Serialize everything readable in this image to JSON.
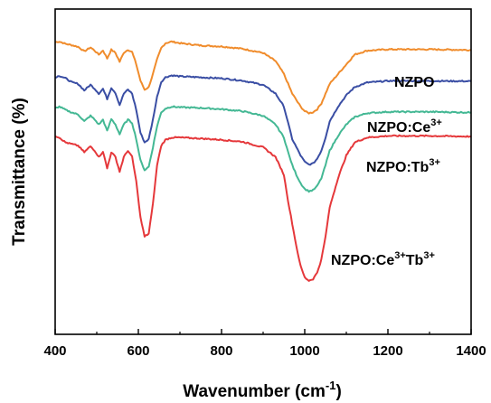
{
  "chart_data": {
    "type": "line",
    "title": "",
    "xlabel": "Wavenumber (cm",
    "xlabel_sup": "-1",
    "xlabel_end": ")",
    "ylabel": "Transmittance (%)",
    "xlim": [
      400,
      1400
    ],
    "ylim": [
      0,
      1
    ],
    "xticks": [
      400,
      600,
      800,
      1000,
      1200,
      1400
    ],
    "yticks_shown": false,
    "grid": false,
    "legend": "inline-labels-right",
    "series": [
      {
        "name": "NZPO",
        "label_base": "NZPO",
        "label_sup": "",
        "label_mid": "",
        "label_sup2": "",
        "color": "#f08c2c",
        "x": [
          400,
          410,
          425,
          440,
          455,
          470,
          485,
          495,
          505,
          515,
          525,
          535,
          545,
          555,
          565,
          575,
          585,
          595,
          605,
          615,
          625,
          635,
          645,
          655,
          665,
          680,
          700,
          750,
          800,
          850,
          900,
          930,
          950,
          960,
          970,
          980,
          990,
          1000,
          1010,
          1020,
          1030,
          1040,
          1050,
          1060,
          1080,
          1100,
          1120,
          1150,
          1200,
          1300,
          1400
        ],
        "y": [
          0.898,
          0.9,
          0.893,
          0.889,
          0.884,
          0.87,
          0.882,
          0.872,
          0.86,
          0.873,
          0.848,
          0.875,
          0.865,
          0.838,
          0.866,
          0.875,
          0.868,
          0.83,
          0.78,
          0.752,
          0.76,
          0.8,
          0.845,
          0.88,
          0.895,
          0.9,
          0.895,
          0.888,
          0.885,
          0.878,
          0.865,
          0.84,
          0.8,
          0.77,
          0.74,
          0.72,
          0.7,
          0.686,
          0.68,
          0.683,
          0.692,
          0.71,
          0.74,
          0.77,
          0.8,
          0.83,
          0.86,
          0.872,
          0.876,
          0.876,
          0.874
        ]
      },
      {
        "name": "NZPO:Ce3+",
        "label_base": "NZPO:Ce",
        "label_sup": "3+",
        "label_mid": "",
        "label_sup2": "",
        "color": "#3a4ea4",
        "x": [
          400,
          410,
          425,
          440,
          455,
          470,
          485,
          495,
          505,
          515,
          525,
          535,
          545,
          555,
          565,
          575,
          585,
          595,
          605,
          615,
          625,
          635,
          645,
          655,
          665,
          680,
          700,
          750,
          800,
          850,
          900,
          930,
          950,
          960,
          970,
          980,
          990,
          1000,
          1010,
          1020,
          1030,
          1040,
          1050,
          1060,
          1080,
          1100,
          1120,
          1150,
          1200,
          1300,
          1400
        ],
        "y": [
          0.79,
          0.795,
          0.787,
          0.775,
          0.77,
          0.75,
          0.767,
          0.755,
          0.74,
          0.755,
          0.724,
          0.758,
          0.742,
          0.705,
          0.74,
          0.752,
          0.74,
          0.69,
          0.62,
          0.59,
          0.6,
          0.66,
          0.73,
          0.776,
          0.79,
          0.796,
          0.793,
          0.79,
          0.787,
          0.78,
          0.767,
          0.74,
          0.7,
          0.65,
          0.6,
          0.575,
          0.55,
          0.53,
          0.522,
          0.525,
          0.54,
          0.565,
          0.605,
          0.655,
          0.7,
          0.735,
          0.76,
          0.774,
          0.779,
          0.779,
          0.778
        ]
      },
      {
        "name": "NZPO:Tb3+",
        "label_base": "NZPO:Tb",
        "label_sup": "3+",
        "label_mid": "",
        "label_sup2": "",
        "color": "#44b894",
        "x": [
          400,
          410,
          425,
          440,
          455,
          470,
          485,
          495,
          505,
          515,
          525,
          535,
          545,
          555,
          565,
          575,
          585,
          595,
          605,
          615,
          625,
          635,
          645,
          655,
          665,
          680,
          700,
          750,
          800,
          850,
          900,
          930,
          950,
          960,
          970,
          980,
          990,
          1000,
          1010,
          1020,
          1030,
          1040,
          1050,
          1060,
          1080,
          1100,
          1120,
          1150,
          1200,
          1300,
          1400
        ],
        "y": [
          0.695,
          0.7,
          0.69,
          0.682,
          0.676,
          0.655,
          0.672,
          0.66,
          0.645,
          0.66,
          0.625,
          0.662,
          0.645,
          0.615,
          0.645,
          0.66,
          0.65,
          0.6,
          0.535,
          0.505,
          0.515,
          0.575,
          0.64,
          0.682,
          0.694,
          0.7,
          0.698,
          0.696,
          0.692,
          0.686,
          0.672,
          0.645,
          0.605,
          0.56,
          0.52,
          0.49,
          0.465,
          0.447,
          0.44,
          0.443,
          0.456,
          0.48,
          0.52,
          0.565,
          0.61,
          0.645,
          0.668,
          0.68,
          0.684,
          0.684,
          0.682
        ]
      },
      {
        "name": "NZPO:Ce3+Tb3+",
        "label_base": "NZPO:Ce",
        "label_sup": "3+",
        "label_mid": "Tb",
        "label_sup2": "3+",
        "color": "#e5383b",
        "x": [
          400,
          410,
          425,
          440,
          455,
          470,
          485,
          495,
          505,
          515,
          525,
          535,
          545,
          555,
          565,
          575,
          585,
          595,
          605,
          615,
          625,
          635,
          645,
          655,
          665,
          680,
          700,
          750,
          800,
          850,
          900,
          930,
          950,
          960,
          970,
          980,
          990,
          1000,
          1010,
          1020,
          1030,
          1040,
          1050,
          1060,
          1080,
          1100,
          1120,
          1150,
          1200,
          1300,
          1400
        ],
        "y": [
          0.61,
          0.605,
          0.59,
          0.585,
          0.58,
          0.56,
          0.578,
          0.565,
          0.545,
          0.562,
          0.51,
          0.56,
          0.545,
          0.5,
          0.545,
          0.565,
          0.545,
          0.47,
          0.36,
          0.3,
          0.31,
          0.4,
          0.52,
          0.58,
          0.598,
          0.605,
          0.605,
          0.602,
          0.598,
          0.592,
          0.575,
          0.545,
          0.49,
          0.41,
          0.34,
          0.27,
          0.21,
          0.175,
          0.165,
          0.17,
          0.19,
          0.23,
          0.3,
          0.39,
          0.48,
          0.55,
          0.59,
          0.605,
          0.61,
          0.61,
          0.608
        ]
      }
    ],
    "series_label_positions": [
      "top-right",
      "right",
      "right",
      "lower-right"
    ]
  }
}
